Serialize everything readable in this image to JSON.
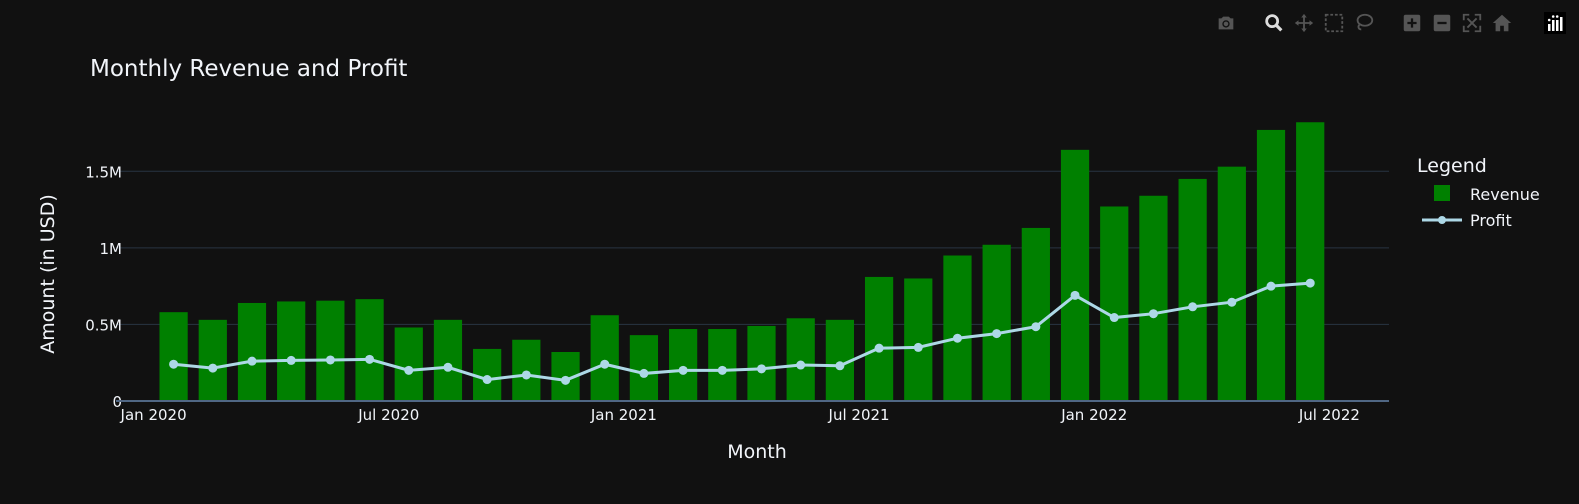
{
  "chart_data": {
    "type": "bar",
    "title": "Monthly Revenue and Profit",
    "xlabel": "Month",
    "ylabel": "Amount (in USD)",
    "x_tick_labels": [
      "Jan 2020",
      "Jul 2020",
      "Jan 2021",
      "Jul 2021",
      "Jan 2022",
      "Jul 2022"
    ],
    "y_tick_labels": [
      "0",
      "0.5M",
      "1M",
      "1.5M"
    ],
    "y_ticks": [
      0,
      500000,
      1000000,
      1500000
    ],
    "ylim": [
      0,
      1900000
    ],
    "grid": true,
    "legend": {
      "title": "Legend",
      "position": "right",
      "items": [
        "Revenue",
        "Profit"
      ]
    },
    "categories": [
      "2020-01",
      "2020-02",
      "2020-03",
      "2020-04",
      "2020-05",
      "2020-06",
      "2020-07",
      "2020-08",
      "2020-09",
      "2020-10",
      "2020-11",
      "2020-12",
      "2021-01",
      "2021-02",
      "2021-03",
      "2021-04",
      "2021-05",
      "2021-06",
      "2021-07",
      "2021-08",
      "2021-09",
      "2021-10",
      "2021-11",
      "2021-12",
      "2022-01",
      "2022-02",
      "2022-03",
      "2022-04",
      "2022-05",
      "2022-06",
      "2022-07"
    ],
    "series": [
      {
        "name": "Revenue",
        "type": "bar",
        "color": "#008000",
        "values": [
          580000,
          530000,
          640000,
          650000,
          655000,
          665000,
          480000,
          530000,
          340000,
          400000,
          320000,
          560000,
          430000,
          470000,
          470000,
          490000,
          540000,
          530000,
          810000,
          800000,
          950000,
          1020000,
          1130000,
          1640000,
          1270000,
          1340000,
          1450000,
          1530000,
          1770000,
          1820000,
          null
        ]
      },
      {
        "name": "Profit",
        "type": "line",
        "color": "#add8e6",
        "values": [
          240000,
          215000,
          260000,
          265000,
          268000,
          272000,
          200000,
          220000,
          140000,
          170000,
          135000,
          240000,
          180000,
          200000,
          200000,
          210000,
          235000,
          230000,
          345000,
          350000,
          410000,
          440000,
          485000,
          690000,
          545000,
          570000,
          615000,
          645000,
          750000,
          770000,
          null
        ]
      }
    ]
  },
  "modebar": {
    "buttons": [
      "camera-icon",
      "zoom-icon",
      "pan-icon",
      "box-select-icon",
      "lasso-icon",
      "zoom-in-icon",
      "zoom-out-icon",
      "autoscale-icon",
      "home-icon",
      "plotly-logo-icon"
    ]
  },
  "colors": {
    "background": "#111111",
    "grid": "#283442",
    "axis_line": "#506784",
    "text": "#f2f5fa"
  }
}
